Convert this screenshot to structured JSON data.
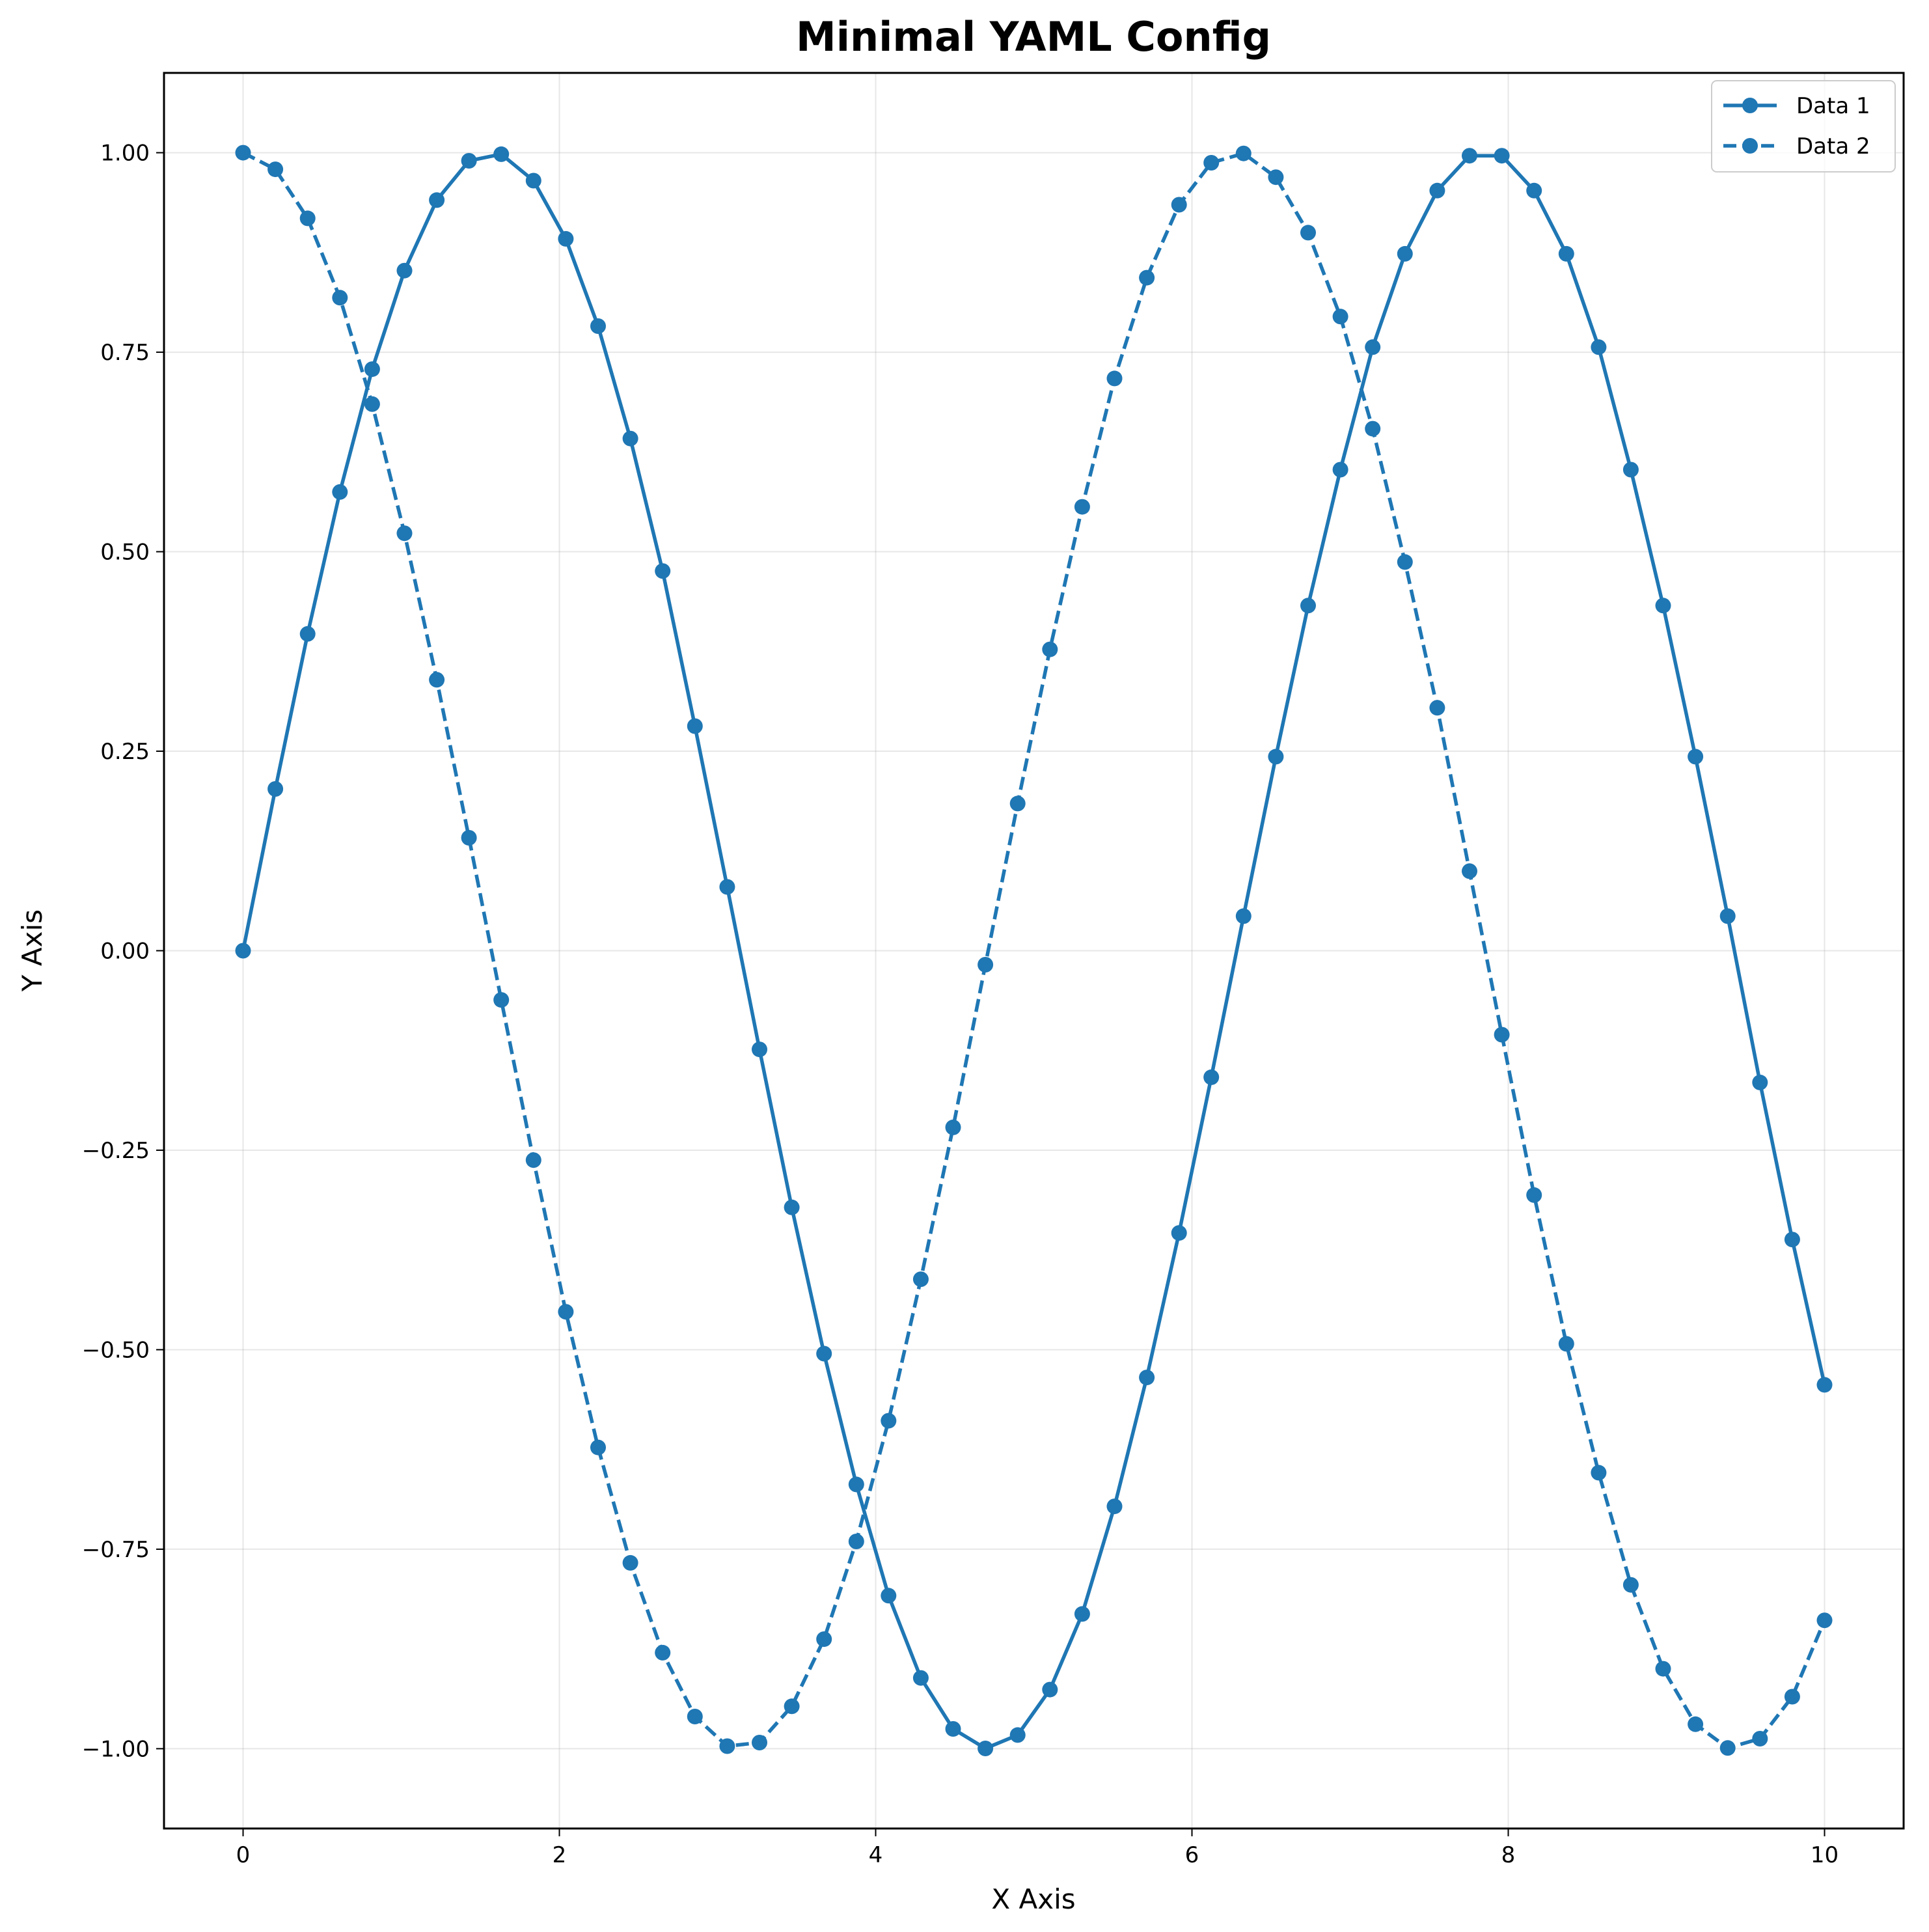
{
  "chart_data": {
    "type": "line",
    "title": "Minimal YAML Config",
    "xlabel": "X Axis",
    "ylabel": "Y Axis",
    "xlim": [
      -0.5,
      10.5
    ],
    "ylim": [
      -1.1,
      1.1
    ],
    "xticks": [
      0,
      2,
      4,
      6,
      8,
      10
    ],
    "xtick_labels": [
      "0",
      "2",
      "4",
      "6",
      "8",
      "10"
    ],
    "yticks": [
      1.0,
      0.75,
      0.5,
      0.25,
      0.0,
      -0.25,
      -0.5,
      -0.75,
      -1.0
    ],
    "ytick_labels": [
      "1.00",
      "0.75",
      "0.50",
      "0.25",
      "0.00",
      "−0.25",
      "−0.50",
      "−0.75",
      "−1.00"
    ],
    "grid": true,
    "legend_position": "top-right",
    "color": "#1f77b4",
    "x": [
      0.0,
      0.2041,
      0.4082,
      0.6122,
      0.8163,
      1.0204,
      1.2245,
      1.4286,
      1.6327,
      1.8367,
      2.0408,
      2.2449,
      2.449,
      2.6531,
      2.8571,
      3.0612,
      3.2653,
      3.4694,
      3.6735,
      3.8776,
      4.0816,
      4.2857,
      4.4898,
      4.6939,
      4.898,
      5.102,
      5.3061,
      5.5102,
      5.7143,
      5.9184,
      6.1224,
      6.3265,
      6.5306,
      6.7347,
      6.9388,
      7.1429,
      7.3469,
      7.551,
      7.7551,
      7.9592,
      8.1633,
      8.3673,
      8.5714,
      8.7755,
      8.9796,
      9.1837,
      9.3878,
      9.5918,
      9.7959,
      10.0
    ],
    "series": [
      {
        "name": "Data 1",
        "linestyle": "solid",
        "values": [
          0.0,
          0.2027,
          0.397,
          0.5748,
          0.7288,
          0.8523,
          0.9406,
          0.9899,
          0.9981,
          0.965,
          0.8921,
          0.7827,
          0.6418,
          0.4758,
          0.2814,
          0.0799,
          -0.1237,
          -0.3216,
          -0.5049,
          -0.6688,
          -0.8082,
          -0.9113,
          -0.9752,
          -0.9997,
          -0.9829,
          -0.9259,
          -0.8311,
          -0.6963,
          -0.5348,
          -0.3537,
          -0.1586,
          0.0433,
          0.2432,
          0.4325,
          0.6028,
          0.7563,
          0.8733,
          0.9525,
          0.9962,
          0.9962,
          0.9525,
          0.8733,
          0.7563,
          0.6028,
          0.4325,
          0.2432,
          0.0433,
          -0.1651,
          -0.3619,
          -0.544
        ]
      },
      {
        "name": "Data 2",
        "linestyle": "dashed",
        "values": [
          1.0,
          0.9792,
          0.9178,
          0.8183,
          0.685,
          0.5231,
          0.3395,
          0.1415,
          -0.0617,
          -0.2624,
          -0.4525,
          -0.6225,
          -0.7671,
          -0.8797,
          -0.9597,
          -0.9968,
          -0.9923,
          -0.9469,
          -0.8627,
          -0.7403,
          -0.589,
          -0.4117,
          -0.2214,
          -0.0175,
          0.1844,
          0.3776,
          0.5562,
          0.7171,
          0.8434,
          0.9348,
          0.9874,
          0.9991,
          0.9693,
          0.8998,
          0.7947,
          0.6541,
          0.4871,
          0.3044,
          0.0997,
          -0.1052,
          -0.3062,
          -0.4926,
          -0.6541,
          -0.7947,
          -0.8998,
          -0.9693,
          -0.9991,
          -0.9874,
          -0.9348,
          -0.8391
        ]
      }
    ]
  }
}
